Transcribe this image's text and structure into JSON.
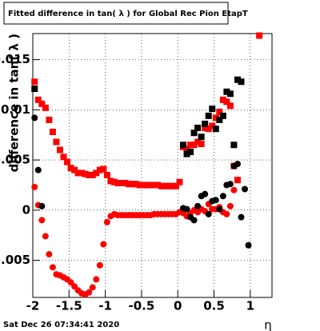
{
  "chart_data": {
    "type": "scatter",
    "title": "Fitted difference in tan( λ ) for Global Rec Pion EtapT",
    "x_label": "η",
    "y_label": "difference in tan( λ )",
    "footer": "Sat Dec 26 07:34:41 2020",
    "xlim": [
      -2,
      1.3
    ],
    "ylim": [
      -0.0087,
      0.0176
    ],
    "xticks": [
      -2,
      -1.5,
      -1,
      -0.5,
      0,
      0.5,
      1
    ],
    "yticks": [
      -0.005,
      0,
      0.005,
      0.01,
      0.015
    ],
    "grid": true,
    "series": [
      {
        "color": "#ff0000",
        "marker": "square",
        "x": [
          -1.975,
          -1.925,
          -1.875,
          -1.825,
          -1.775,
          -1.725,
          -1.675,
          -1.625,
          -1.575,
          -1.525,
          -1.475,
          -1.425,
          -1.375,
          -1.325,
          -1.275,
          -1.225,
          -1.175,
          -1.125,
          -1.075,
          -1.025,
          -0.975,
          -0.925,
          -0.875,
          -0.825,
          -0.775,
          -0.725,
          -0.675,
          -0.625,
          -0.575,
          -0.525,
          -0.475,
          -0.425,
          -0.375,
          -0.325,
          -0.275,
          -0.225,
          -0.175,
          -0.125,
          -0.075,
          -0.025,
          0.025,
          0.075,
          0.125,
          0.175,
          0.225,
          0.275,
          0.325,
          0.375,
          0.425,
          0.475,
          0.525,
          0.575,
          0.625,
          0.675,
          0.725,
          0.775,
          0.825,
          1.125
        ],
        "values": [
          0.0128,
          0.011,
          0.0106,
          0.0102,
          0.009,
          0.0078,
          0.0068,
          0.006,
          0.0053,
          0.0048,
          0.0042,
          0.004,
          0.0037,
          0.0037,
          0.0036,
          0.0035,
          0.0035,
          0.0037,
          0.004,
          0.0041,
          0.0035,
          0.0029,
          0.0028,
          0.0027,
          0.0027,
          0.0027,
          0.0026,
          0.0026,
          0.0026,
          0.0025,
          0.0025,
          0.0025,
          0.0025,
          0.0025,
          0.0025,
          0.0024,
          0.0024,
          0.0024,
          0.0024,
          0.0024,
          0.0028,
          0.0063,
          0.0061,
          0.0065,
          0.0065,
          0.0068,
          0.0066,
          0.0082,
          0.0081,
          0.0084,
          0.0092,
          0.0098,
          0.011,
          0.0108,
          0.0104,
          0.0044,
          0.003,
          0.0174
        ]
      },
      {
        "color": "#ff0000",
        "marker": "circle",
        "x": [
          -1.975,
          -1.925,
          -1.875,
          -1.825,
          -1.775,
          -1.725,
          -1.675,
          -1.625,
          -1.575,
          -1.525,
          -1.475,
          -1.425,
          -1.375,
          -1.325,
          -1.275,
          -1.225,
          -1.175,
          -1.125,
          -1.075,
          -1.025,
          -0.975,
          -0.925,
          -0.875,
          -0.825,
          -0.775,
          -0.725,
          -0.675,
          -0.625,
          -0.575,
          -0.525,
          -0.475,
          -0.425,
          -0.375,
          -0.325,
          -0.275,
          -0.225,
          -0.175,
          -0.125,
          -0.075,
          -0.025,
          0.025,
          0.075,
          0.125,
          0.175,
          0.225,
          0.275,
          0.325,
          0.375,
          0.425,
          0.475,
          0.525,
          0.575,
          0.625,
          0.675,
          0.725,
          0.775
        ],
        "values": [
          0.0023,
          0.0005,
          -0.001,
          -0.0026,
          -0.0044,
          -0.0057,
          -0.0064,
          -0.0065,
          -0.0067,
          -0.0069,
          -0.0072,
          -0.0076,
          -0.008,
          -0.0083,
          -0.0084,
          -0.0082,
          -0.0077,
          -0.0069,
          -0.0055,
          -0.0034,
          -0.0012,
          -0.0006,
          -0.0004,
          -0.0005,
          -0.0005,
          -0.0005,
          -0.0005,
          -0.0005,
          -0.0005,
          -0.0005,
          -0.0005,
          -0.0005,
          -0.0005,
          -0.0004,
          -0.0004,
          -0.0004,
          -0.0004,
          -0.0004,
          -0.0004,
          -0.0004,
          -0.0002,
          -0.0003,
          -0.0006,
          -0.0003,
          0.0,
          -0.0002,
          0.0001,
          -0.0001,
          0.0006,
          0.0001,
          0.0001,
          0.0003,
          -0.0002,
          -0.0004,
          0.0004,
          0.002
        ]
      },
      {
        "color": "#000000",
        "marker": "square",
        "x": [
          -1.975,
          0.075,
          0.125,
          0.175,
          0.225,
          0.275,
          0.325,
          0.375,
          0.425,
          0.475,
          0.525,
          0.575,
          0.625,
          0.675,
          0.725,
          0.775,
          0.825,
          0.875
        ],
        "values": [
          0.0121,
          0.0065,
          0.0056,
          0.0058,
          0.0077,
          0.0082,
          0.0073,
          0.0086,
          0.0094,
          0.0101,
          0.0081,
          0.009,
          0.0094,
          0.0118,
          0.0116,
          0.0065,
          0.013,
          0.0128
        ]
      },
      {
        "color": "#000000",
        "marker": "circle",
        "x": [
          -1.975,
          -1.925,
          -1.875,
          0.075,
          0.125,
          0.175,
          0.225,
          0.275,
          0.325,
          0.375,
          0.425,
          0.475,
          0.525,
          0.575,
          0.625,
          0.675,
          0.725,
          0.775,
          0.825,
          0.875,
          0.925,
          0.975
        ],
        "values": [
          0.0092,
          0.004,
          0.0004,
          0.0002,
          0.0001,
          -0.0007,
          -0.001,
          0.0004,
          0.0014,
          0.0016,
          -0.0004,
          0.0009,
          0.001,
          0.0001,
          0.0014,
          0.0025,
          0.0026,
          0.0044,
          0.0046,
          -0.0007,
          0.0021,
          -0.0035
        ]
      }
    ]
  }
}
